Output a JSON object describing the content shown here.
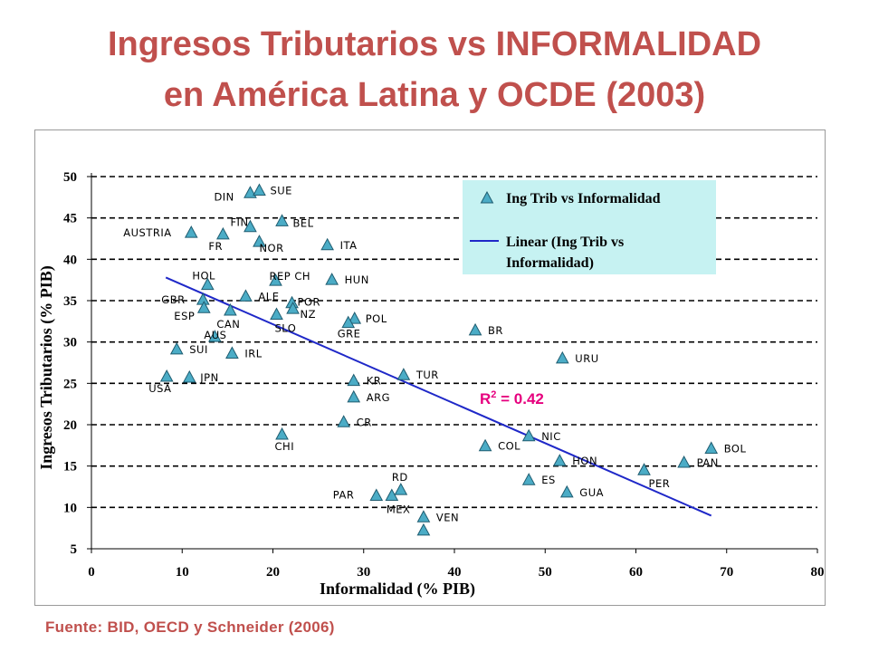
{
  "title": {
    "line1": "Ingresos Tributarios vs INFORMALIDAD",
    "line2": "en América Latina y OCDE (2003)"
  },
  "source": "Fuente: BID, OECD y Schneider (2006)",
  "colors": {
    "title": "#c0504d",
    "marker_fill": "#4bacc6",
    "marker_stroke": "#1f5c70",
    "trendline": "#1f28c8",
    "r2": "#e6007e",
    "legend_bg": "#c6f2f2"
  },
  "chart_data": {
    "type": "scatter",
    "xlabel": "Informalidad (% PIB)",
    "ylabel": "Ingresos Tributarios (% PIB)",
    "xlim": [
      0,
      80
    ],
    "ylim": [
      5,
      50
    ],
    "xticks": [
      "0",
      "10",
      "20",
      "30",
      "40",
      "50",
      "60",
      "70",
      "80"
    ],
    "yticks": [
      "5",
      "10",
      "15",
      "20",
      "25",
      "30",
      "35",
      "40",
      "45",
      "50"
    ],
    "grid": "horizontal dashed",
    "legend": {
      "position": "top-right",
      "series_label": "Ing Trib vs Informalidad",
      "trend_label_1": "Linear (Ing Trib vs",
      "trend_label_2": "Informalidad)"
    },
    "r2_prefix": "R",
    "r2_sup": "2",
    "r2_suffix": " = 0.42",
    "trendline": {
      "x": [
        8.2,
        68.3
      ],
      "y": [
        37.8,
        9.0
      ]
    },
    "points": [
      {
        "label": "DIN",
        "x": 17.5,
        "y": 48.0
      },
      {
        "label": "SUE",
        "x": 18.5,
        "y": 48.3
      },
      {
        "label": "FIN",
        "x": 17.5,
        "y": 43.9
      },
      {
        "label": "BEL",
        "x": 21.0,
        "y": 44.6
      },
      {
        "label": "AUSTRIA",
        "x": 11.0,
        "y": 43.2
      },
      {
        "label": "FR",
        "x": 14.5,
        "y": 43.0
      },
      {
        "label": "NOR",
        "x": 18.5,
        "y": 42.1
      },
      {
        "label": "ITA",
        "x": 26.0,
        "y": 41.7
      },
      {
        "label": "HOL",
        "x": 12.8,
        "y": 36.9
      },
      {
        "label": "REP CH",
        "x": 20.3,
        "y": 37.4
      },
      {
        "label": "HUN",
        "x": 26.5,
        "y": 37.5
      },
      {
        "label": "GBR",
        "x": 12.3,
        "y": 35.1
      },
      {
        "label": "ALE",
        "x": 17.0,
        "y": 35.5
      },
      {
        "label": "POR",
        "x": 22.1,
        "y": 34.7
      },
      {
        "label": "ESP",
        "x": 12.4,
        "y": 34.1
      },
      {
        "label": "NZ",
        "x": 22.2,
        "y": 34.0
      },
      {
        "label": "CAN",
        "x": 15.3,
        "y": 33.8
      },
      {
        "label": "SLO",
        "x": 20.4,
        "y": 33.3
      },
      {
        "label": "POL",
        "x": 29.0,
        "y": 32.8
      },
      {
        "label": "GRE",
        "x": 28.3,
        "y": 32.3
      },
      {
        "label": "AUS",
        "x": 13.6,
        "y": 30.6
      },
      {
        "label": "BR",
        "x": 42.3,
        "y": 31.4
      },
      {
        "label": "SUI",
        "x": 9.4,
        "y": 29.1
      },
      {
        "label": "IRL",
        "x": 15.5,
        "y": 28.6
      },
      {
        "label": "URU",
        "x": 51.9,
        "y": 28.0
      },
      {
        "label": "USA",
        "x": 8.3,
        "y": 25.8
      },
      {
        "label": "JPN",
        "x": 10.8,
        "y": 25.7
      },
      {
        "label": "TUR",
        "x": 34.4,
        "y": 26.0
      },
      {
        "label": "KR",
        "x": 28.9,
        "y": 25.3
      },
      {
        "label": "ARG",
        "x": 28.9,
        "y": 23.3
      },
      {
        "label": "CR",
        "x": 27.8,
        "y": 20.3
      },
      {
        "label": "CHI",
        "x": 21.0,
        "y": 18.8
      },
      {
        "label": "NIC",
        "x": 48.2,
        "y": 18.6
      },
      {
        "label": "COL",
        "x": 43.4,
        "y": 17.4
      },
      {
        "label": "BOL",
        "x": 68.3,
        "y": 17.1
      },
      {
        "label": "HON",
        "x": 51.6,
        "y": 15.6
      },
      {
        "label": "PAN",
        "x": 65.3,
        "y": 15.4
      },
      {
        "label": "PER",
        "x": 60.9,
        "y": 14.5
      },
      {
        "label": "ES",
        "x": 48.2,
        "y": 13.3
      },
      {
        "label": "RD",
        "x": 34.1,
        "y": 12.1
      },
      {
        "label": "GUA",
        "x": 52.4,
        "y": 11.8
      },
      {
        "label": "PAR",
        "x": 31.4,
        "y": 11.4
      },
      {
        "label": "MEX",
        "x": 33.1,
        "y": 11.4
      },
      {
        "label": "VEN",
        "x": 36.6,
        "y": 8.8
      },
      {
        "label": "",
        "x": 36.6,
        "y": 7.2
      }
    ]
  }
}
